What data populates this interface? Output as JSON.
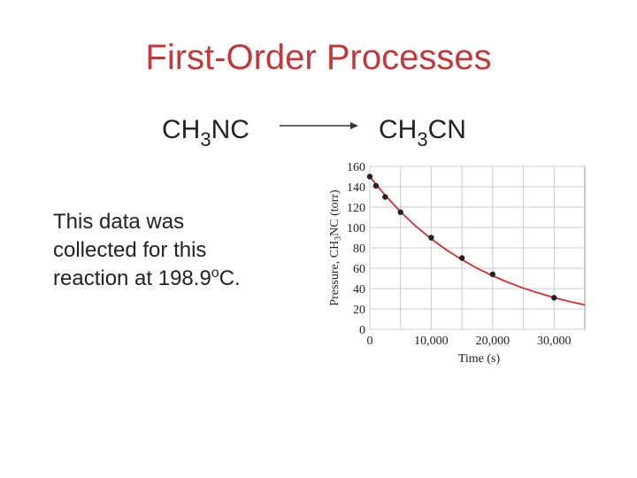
{
  "slide": {
    "title": "First-Order Processes",
    "reactant": [
      "CH",
      "3",
      "NC"
    ],
    "product": [
      "CH",
      "3",
      "CN"
    ],
    "caption": [
      [
        "This data was"
      ],
      [
        "collected for this"
      ],
      [
        "reaction at 198.9",
        "o",
        "C."
      ]
    ]
  },
  "chart_data": {
    "type": "scatter",
    "x_label": [
      "Time (s)"
    ],
    "y_label": [
      "Pressure, CH",
      "3",
      "NC (torr)"
    ],
    "x": [
      0,
      1000,
      2500,
      5000,
      10000,
      15000,
      20000,
      30000
    ],
    "values": [
      150,
      141,
      130,
      115,
      90,
      70,
      54,
      31
    ],
    "color": "#222222",
    "curve": {
      "color": "#d0302f",
      "x": [
        0,
        2500,
        5000,
        7500,
        10000,
        12500,
        15000,
        17500,
        20000,
        22500,
        25000,
        27500,
        30000,
        32500,
        35000
      ],
      "values": [
        150,
        131.6,
        115.4,
        101.2,
        88.8,
        77.9,
        68.3,
        59.9,
        52.5,
        46.1,
        40.4,
        35.5,
        31.1,
        27.3,
        23.9
      ]
    },
    "xlim": [
      0,
      35000
    ],
    "xticks": [
      0,
      {
        "value": 10000,
        "label": "10,000"
      },
      {
        "value": 20000,
        "label": "20,000"
      },
      {
        "value": 30000,
        "label": "30,000"
      }
    ],
    "xminor_ticks": [
      5000,
      15000,
      25000
    ],
    "ylim": [
      0,
      160
    ],
    "yticks": [
      0,
      20,
      40,
      60,
      80,
      100,
      120,
      140,
      160
    ],
    "grid": true
  }
}
